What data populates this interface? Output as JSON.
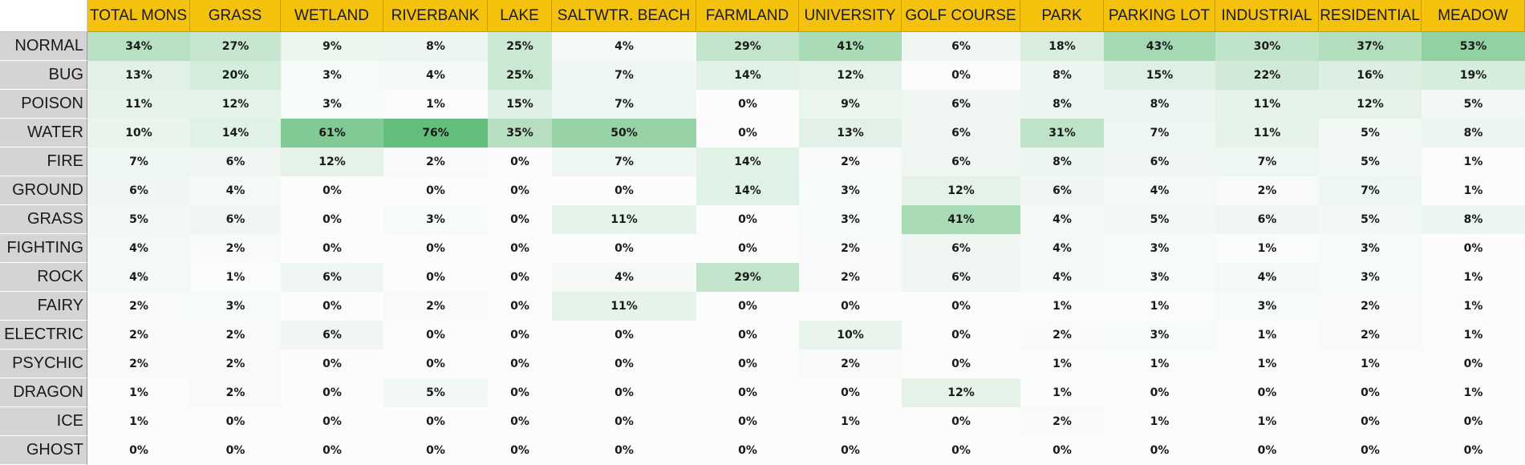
{
  "chart_data": {
    "type": "heatmap",
    "title": "",
    "xlabel": "",
    "ylabel": "",
    "columns": [
      "TOTAL MONS",
      "GRASS",
      "WETLAND",
      "RIVERBANK",
      "LAKE",
      "SALTWTR. BEACH",
      "FARMLAND",
      "UNIVERSITY",
      "GOLF COURSE",
      "PARK",
      "PARKING LOT",
      "INDUSTRIAL",
      "RESIDENTIAL",
      "MEADOW"
    ],
    "rows": [
      "NORMAL",
      "BUG",
      "POISON",
      "WATER",
      "FIRE",
      "GROUND",
      "GRASS",
      "FIGHTING",
      "ROCK",
      "FAIRY",
      "ELECTRIC",
      "PSYCHIC",
      "DRAGON",
      "ICE",
      "GHOST"
    ],
    "values": [
      [
        34,
        27,
        9,
        8,
        25,
        4,
        29,
        41,
        6,
        18,
        43,
        30,
        37,
        53
      ],
      [
        13,
        20,
        3,
        4,
        25,
        7,
        14,
        12,
        0,
        8,
        15,
        22,
        16,
        19
      ],
      [
        11,
        12,
        3,
        1,
        15,
        7,
        0,
        9,
        6,
        8,
        8,
        11,
        12,
        5
      ],
      [
        10,
        14,
        61,
        76,
        35,
        50,
        0,
        13,
        6,
        31,
        7,
        11,
        5,
        8
      ],
      [
        7,
        6,
        12,
        2,
        0,
        7,
        14,
        2,
        6,
        8,
        6,
        7,
        5,
        1
      ],
      [
        6,
        4,
        0,
        0,
        0,
        0,
        14,
        3,
        12,
        6,
        4,
        2,
        7,
        1
      ],
      [
        5,
        6,
        0,
        3,
        0,
        11,
        0,
        3,
        41,
        4,
        5,
        6,
        5,
        8
      ],
      [
        4,
        2,
        0,
        0,
        0,
        0,
        0,
        2,
        6,
        4,
        3,
        1,
        3,
        0
      ],
      [
        4,
        1,
        6,
        0,
        0,
        4,
        29,
        2,
        6,
        4,
        3,
        4,
        3,
        1
      ],
      [
        2,
        3,
        0,
        2,
        0,
        11,
        0,
        0,
        0,
        1,
        1,
        3,
        2,
        1
      ],
      [
        2,
        2,
        6,
        0,
        0,
        0,
        0,
        10,
        0,
        2,
        3,
        1,
        2,
        1
      ],
      [
        2,
        2,
        0,
        0,
        0,
        0,
        0,
        2,
        0,
        1,
        1,
        1,
        1,
        0
      ],
      [
        1,
        2,
        0,
        5,
        0,
        0,
        0,
        0,
        12,
        1,
        0,
        0,
        0,
        1
      ],
      [
        1,
        0,
        0,
        0,
        0,
        0,
        0,
        1,
        0,
        2,
        1,
        1,
        0,
        0
      ],
      [
        0,
        0,
        0,
        0,
        0,
        0,
        0,
        0,
        0,
        0,
        0,
        0,
        0,
        0
      ]
    ],
    "value_suffix": "%",
    "color_scale": {
      "low": "#fcfcfd",
      "high": "#63be7b"
    },
    "header_color": "#f4c10d",
    "row_header_color": "#d4d4d6"
  }
}
